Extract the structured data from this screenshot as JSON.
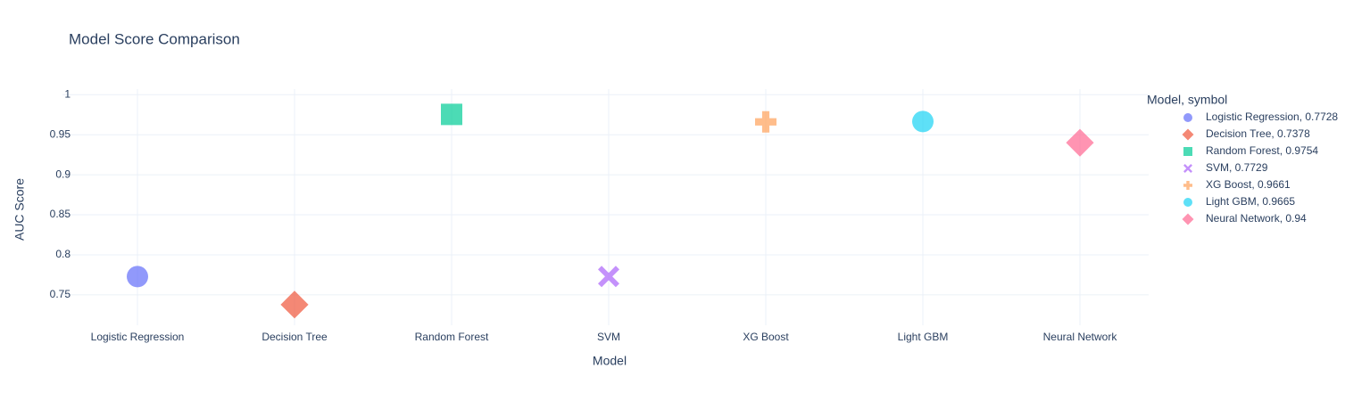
{
  "chart_data": {
    "type": "scatter",
    "title": "Model Score Comparison",
    "x_label": "Model",
    "y_label": "AUC Score",
    "legend_title": "Model, symbol",
    "categories": [
      "Logistic Regression",
      "Decision Tree",
      "Random Forest",
      "SVM",
      "XG Boost",
      "Light GBM",
      "Neural Network"
    ],
    "series": [
      {
        "name": "Logistic Regression, 0.7728",
        "color": "#636efa",
        "symbol": "circle",
        "values": [
          0.7728,
          null,
          null,
          null,
          null,
          null,
          null
        ]
      },
      {
        "name": "Decision Tree, 0.7378",
        "color": "#EF553B",
        "symbol": "diamond",
        "values": [
          null,
          0.7378,
          null,
          null,
          null,
          null,
          null
        ]
      },
      {
        "name": "Random Forest, 0.9754",
        "color": "#00cc96",
        "symbol": "square",
        "values": [
          null,
          null,
          0.9754,
          null,
          null,
          null,
          null
        ]
      },
      {
        "name": "SVM, 0.7729",
        "color": "#ab63fa",
        "symbol": "x",
        "values": [
          null,
          null,
          null,
          0.7729,
          null,
          null,
          null
        ]
      },
      {
        "name": "XG Boost, 0.9661",
        "color": "#FFA15A",
        "symbol": "cross",
        "values": [
          null,
          null,
          null,
          null,
          0.9661,
          null,
          null
        ]
      },
      {
        "name": "Light GBM, 0.9665",
        "color": "#19d3f3",
        "symbol": "circle",
        "values": [
          null,
          null,
          null,
          null,
          null,
          0.9665,
          null
        ]
      },
      {
        "name": "Neural Network, 0.94",
        "color": "#FF6692",
        "symbol": "diamond",
        "values": [
          null,
          null,
          null,
          null,
          null,
          null,
          0.94
        ]
      }
    ],
    "ylim": [
      0.712,
      1.007
    ],
    "yticks": [
      0.75,
      0.8,
      0.85,
      0.9,
      0.95,
      1
    ],
    "grid": true
  }
}
